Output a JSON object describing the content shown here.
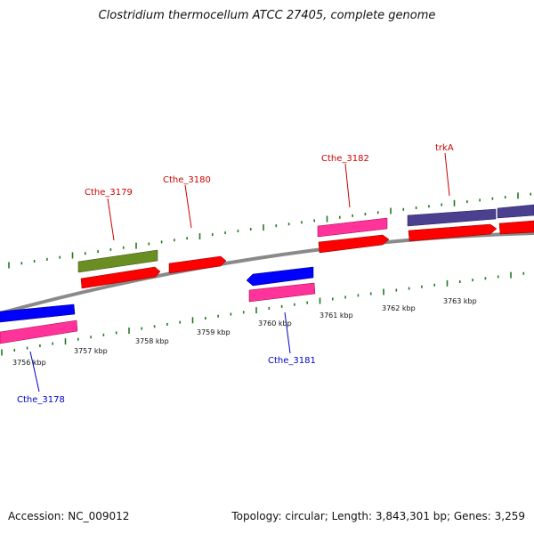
{
  "title": "Clostridium thermocellum ATCC 27405, complete genome",
  "footer": {
    "accession": "Accession: NC_009012",
    "summary": "Topology: circular; Length: 3,843,301 bp; Genes: 3,259"
  },
  "colors": {
    "forward_label": "#cc0000",
    "reverse_label": "#0000cc",
    "backbone": "#8a8a8a",
    "tick": "#1f7a1f",
    "cds": "#ff0000",
    "gene_pink": "#ff3399",
    "gene_olive": "#6b8e23",
    "gene_blue": "#0000ff",
    "gene_purple": "#4b3f8f"
  },
  "scale_labels": [
    "3756 kbp",
    "3757 kbp",
    "3758 kbp",
    "3759 kbp",
    "3760 kbp",
    "3761 kbp",
    "3762 kbp",
    "3763 kbp"
  ],
  "gene_labels": {
    "cthe_3178": "Cthe_3178",
    "cthe_3179": "Cthe_3179",
    "cthe_3180": "Cthe_3180",
    "cthe_3181": "Cthe_3181",
    "cthe_3182": "Cthe_3182",
    "trka": "trkA"
  }
}
